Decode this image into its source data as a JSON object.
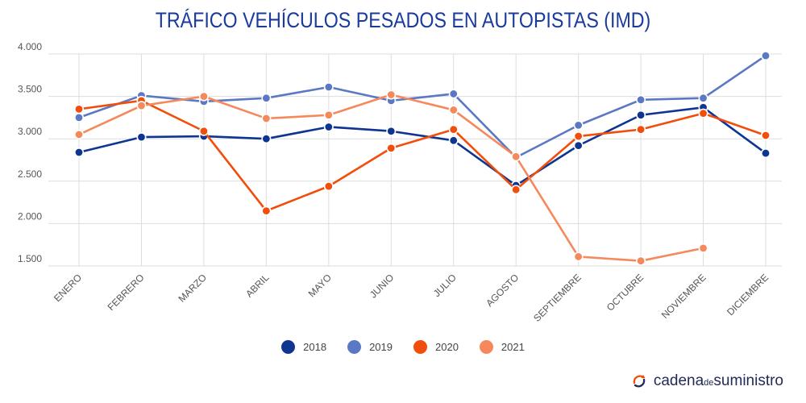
{
  "chart_data": {
    "type": "line",
    "title": "TRÁFICO VEHÍCULOS PESADOS EN AUTOPISTAS (IMD)",
    "categories": [
      "ENERO",
      "FEBRERO",
      "MARZO",
      "ABRIL",
      "MAYO",
      "JUNIO",
      "JULIO",
      "AGOSTO",
      "SEPTIEMBRE",
      "OCTUBRE",
      "NOVIEMBRE",
      "DICIEMBRE"
    ],
    "yticks": [
      "1.500",
      "2.000",
      "2.500",
      "3.000",
      "3.500",
      "4.000"
    ],
    "ytick_values": [
      1500,
      2000,
      2500,
      3000,
      3500,
      4000
    ],
    "ylim": [
      1500,
      4000
    ],
    "grid": true,
    "legend_position": "bottom",
    "series": [
      {
        "name": "2018",
        "color": "#0d3591",
        "values": [
          2840,
          3020,
          3030,
          3000,
          3140,
          3090,
          2980,
          2450,
          2920,
          3280,
          3370,
          2830
        ]
      },
      {
        "name": "2019",
        "color": "#5b78c4",
        "values": [
          3250,
          3510,
          3440,
          3480,
          3610,
          3450,
          3530,
          2780,
          3160,
          3460,
          3480,
          3980
        ]
      },
      {
        "name": "2020",
        "color": "#f04e0a",
        "values": [
          3350,
          3450,
          3090,
          2150,
          2440,
          2890,
          3110,
          2400,
          3030,
          3110,
          3300,
          3040
        ]
      },
      {
        "name": "2021",
        "color": "#f5895b",
        "values": [
          3050,
          3390,
          3500,
          3240,
          3280,
          3520,
          3340,
          2790,
          1610,
          1560,
          1710,
          null
        ]
      }
    ]
  },
  "brand": {
    "name_part1": "cadena",
    "name_part2": "de",
    "name_part3": "suministro",
    "icon": "cadena-logo-icon"
  }
}
